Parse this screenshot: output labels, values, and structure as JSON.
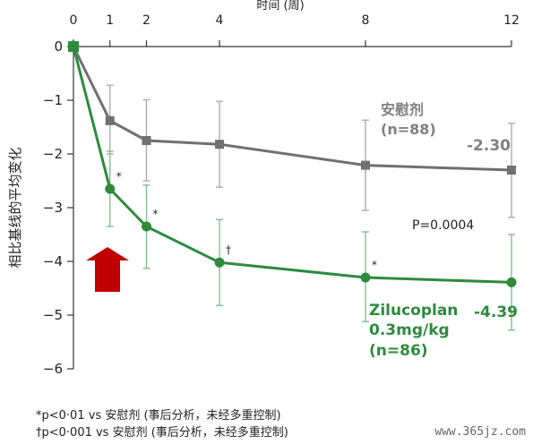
{
  "chart_data": {
    "type": "line",
    "xlabel": "时间 (周)",
    "ylabel": "相比基线的平均变化",
    "x_ticks": [
      0,
      1,
      2,
      4,
      8,
      12
    ],
    "y_ticks": [
      0,
      -1,
      -2,
      -3,
      -4,
      -5,
      -6
    ],
    "xlim": [
      0,
      12
    ],
    "ylim": [
      -6,
      0
    ],
    "grid": false,
    "series": [
      {
        "name": "安慰剂",
        "n_label": "(n=88)",
        "color": "#707070",
        "x": [
          0,
          1,
          2,
          4,
          8,
          12
        ],
        "y": [
          0,
          -1.38,
          -1.75,
          -1.82,
          -2.21,
          -2.3
        ],
        "err_low": [
          0,
          -2.0,
          -2.5,
          -2.62,
          -3.05,
          -3.18
        ],
        "err_high": [
          0,
          -0.72,
          -0.99,
          -1.02,
          -1.37,
          -1.43
        ],
        "end_label": "-2.30",
        "annotations": []
      },
      {
        "name": "Zilucoplan",
        "name_line2": "0.3mg/kg",
        "n_label": "(n=86)",
        "color": "#2e8b3e",
        "x": [
          0,
          1,
          2,
          4,
          8,
          12
        ],
        "y": [
          0,
          -2.65,
          -3.35,
          -4.02,
          -4.3,
          -4.39
        ],
        "err_low": [
          0,
          -3.35,
          -4.13,
          -4.82,
          -5.12,
          -5.28
        ],
        "err_high": [
          0,
          -1.95,
          -2.58,
          -3.22,
          -3.45,
          -3.5
        ],
        "end_label": "-4.39",
        "annotations": [
          {
            "x": 1,
            "text": "*"
          },
          {
            "x": 2,
            "text": "*"
          },
          {
            "x": 4,
            "text": "†"
          },
          {
            "x": 8,
            "text": "*"
          }
        ]
      }
    ],
    "p_value": "P=0.0004",
    "arrow_color": "#c00000"
  },
  "footnotes": [
    "*p<0·01 vs 安慰剂 (事后分析，未经多重控制)",
    "†p<0·001 vs 安慰剂 (事后分析，未经多重控制)"
  ],
  "watermark": "www.365jz.com"
}
